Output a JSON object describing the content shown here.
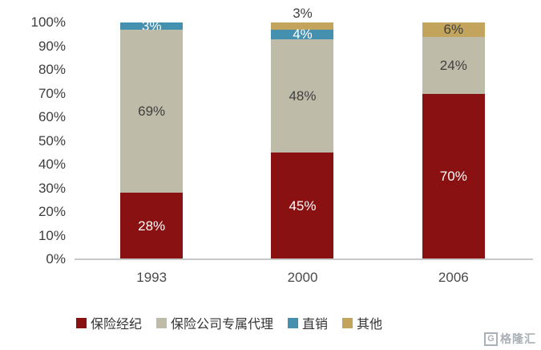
{
  "chart_data": {
    "type": "bar",
    "variant": "stacked-100-percent",
    "title": "",
    "xlabel": "",
    "ylabel": "",
    "categories": [
      "1993",
      "2000",
      "2006"
    ],
    "series": [
      {
        "name": "保险经纪",
        "color": "#8A1111",
        "label_color": "#FFFFFF",
        "values": [
          28,
          45,
          70
        ]
      },
      {
        "name": "保险公司专属代理",
        "color": "#BEBBA8",
        "label_color": "#3F3F3F",
        "values": [
          69,
          48,
          24
        ]
      },
      {
        "name": "直销",
        "color": "#4590AF",
        "label_color": "#FFFFFF",
        "values": [
          3,
          4,
          0
        ]
      },
      {
        "name": "其他",
        "color": "#C3A45C",
        "label_color": "#3F3F3F",
        "values": [
          0,
          3,
          6
        ],
        "label_outside": [
          false,
          true,
          false
        ]
      }
    ],
    "value_suffix": "%",
    "outside_label_color": "#3F3F3F",
    "ylim": [
      0,
      100
    ],
    "ytick_step": 10,
    "ytick_labels": [
      "0%",
      "10%",
      "20%",
      "30%",
      "40%",
      "50%",
      "60%",
      "70%",
      "80%",
      "90%",
      "100%"
    ],
    "grid": false,
    "legend_position": "bottom"
  },
  "watermark": {
    "logo_letter": "G",
    "text": "格隆汇"
  }
}
